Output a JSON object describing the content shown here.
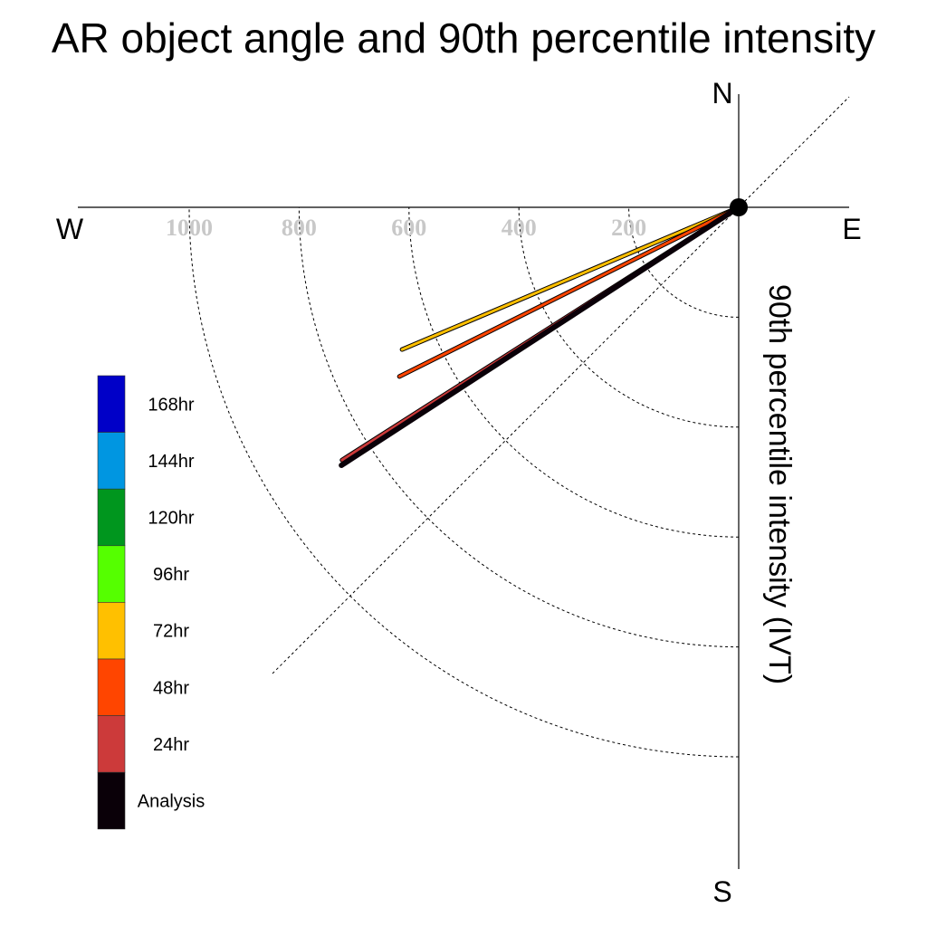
{
  "chart_data": {
    "type": "polar-vector",
    "title": "AR object angle and 90th percentile intensity",
    "ylabel": "90th percentile intensity (IVT)",
    "compass": {
      "north": "N",
      "south": "S",
      "east": "E",
      "west": "W"
    },
    "radial_ticks": [
      "1000",
      "800",
      "600",
      "400",
      "200"
    ],
    "radial_tick_values": [
      1000,
      800,
      600,
      400,
      200
    ],
    "radial_max": 1200,
    "series": [
      {
        "name": "72hr",
        "color": "#ffc000",
        "magnitude": 665,
        "angle_below_west_deg": 22.9
      },
      {
        "name": "48hr",
        "color": "#ff4500",
        "magnitude": 690,
        "angle_below_west_deg": 26.5
      },
      {
        "name": "24hr",
        "color": "#cc3a3a",
        "magnitude": 856,
        "angle_below_west_deg": 32.5
      },
      {
        "name": "Analysis",
        "color": "#0a0008",
        "magnitude": 862,
        "angle_below_west_deg": 33.0
      }
    ],
    "legend": [
      {
        "label": "168hr",
        "color": "#0000c8"
      },
      {
        "label": "144hr",
        "color": "#0096e1"
      },
      {
        "label": "120hr",
        "color": "#00961e"
      },
      {
        "label": "96hr",
        "color": "#55ff00"
      },
      {
        "label": "72hr",
        "color": "#ffc000"
      },
      {
        "label": "48hr",
        "color": "#ff4500"
      },
      {
        "label": "24hr",
        "color": "#cc3a3a"
      },
      {
        "label": "Analysis",
        "color": "#0a0008"
      }
    ]
  }
}
